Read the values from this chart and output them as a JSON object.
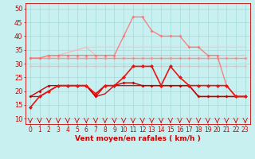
{
  "background_color": "#c8f0f0",
  "grid_color": "#aadddd",
  "xlabel": "Vent moyen/en rafales ( km/h )",
  "ylabel_ticks": [
    10,
    15,
    20,
    25,
    30,
    35,
    40,
    45,
    50
  ],
  "xlim": [
    -0.5,
    23.5
  ],
  "ylim": [
    8,
    52
  ],
  "x": [
    0,
    1,
    2,
    3,
    4,
    5,
    6,
    7,
    8,
    9,
    10,
    11,
    12,
    13,
    14,
    15,
    16,
    17,
    18,
    19,
    20,
    21,
    22,
    23
  ],
  "series": [
    {
      "label": "line_light_rising",
      "y": [
        32,
        32,
        33,
        33,
        34,
        35,
        36,
        33,
        33,
        33,
        33,
        33,
        33,
        33,
        33,
        33,
        33,
        33,
        33,
        33,
        33,
        33,
        33,
        33
      ],
      "color": "#ffaaaa",
      "marker": null,
      "markersize": 0,
      "linewidth": 0.9,
      "alpha": 0.75,
      "zorder": 2
    },
    {
      "label": "line_light_upper",
      "y": [
        32,
        32,
        32,
        33,
        34,
        35,
        36,
        36,
        36,
        36,
        36,
        36,
        36,
        36,
        36,
        36,
        36,
        36,
        36,
        36,
        36,
        36,
        36,
        36
      ],
      "color": "#ffb8b8",
      "marker": null,
      "markersize": 0,
      "linewidth": 0.9,
      "alpha": 0.6,
      "zorder": 2
    },
    {
      "label": "line_peak_rafales",
      "y": [
        32,
        32,
        33,
        33,
        33,
        33,
        33,
        33,
        33,
        33,
        40,
        47,
        47,
        42,
        40,
        40,
        40,
        36,
        36,
        33,
        33,
        22,
        18,
        18
      ],
      "color": "#ff7070",
      "marker": "D",
      "markersize": 2.0,
      "linewidth": 1.0,
      "alpha": 0.85,
      "zorder": 4
    },
    {
      "label": "line_flat_32",
      "y": [
        32,
        32,
        32,
        32,
        32,
        32,
        32,
        32,
        32,
        32,
        32,
        32,
        32,
        32,
        32,
        32,
        32,
        32,
        32,
        32,
        32,
        32,
        32,
        32
      ],
      "color": "#ff8888",
      "marker": "D",
      "markersize": 2.0,
      "linewidth": 1.0,
      "alpha": 0.9,
      "zorder": 3
    },
    {
      "label": "line_flat_29",
      "y": [
        29,
        29,
        29,
        29,
        29,
        29,
        29,
        29,
        29,
        29,
        29,
        29,
        29,
        29,
        29,
        29,
        29,
        29,
        29,
        29,
        29,
        29,
        29,
        29
      ],
      "color": "#ffb0b0",
      "marker": "D",
      "markersize": 1.8,
      "linewidth": 0.9,
      "alpha": 0.8,
      "zorder": 3
    },
    {
      "label": "line_dark_main",
      "y": [
        14,
        18,
        20,
        22,
        22,
        22,
        22,
        19,
        22,
        22,
        25,
        29,
        29,
        29,
        22,
        29,
        25,
        22,
        22,
        22,
        22,
        22,
        18,
        18
      ],
      "color": "#ee1111",
      "marker": "D",
      "markersize": 2.5,
      "linewidth": 1.2,
      "alpha": 1.0,
      "zorder": 6
    },
    {
      "label": "line_dark_lower1",
      "y": [
        18,
        20,
        22,
        22,
        22,
        22,
        22,
        18,
        22,
        22,
        23,
        23,
        22,
        22,
        22,
        22,
        22,
        22,
        18,
        18,
        18,
        18,
        18,
        18
      ],
      "color": "#cc0000",
      "marker": "D",
      "markersize": 2.0,
      "linewidth": 1.0,
      "alpha": 1.0,
      "zorder": 5
    },
    {
      "label": "line_dark_lower2",
      "y": [
        18,
        18,
        20,
        22,
        22,
        22,
        22,
        18,
        19,
        22,
        22,
        22,
        22,
        22,
        22,
        22,
        22,
        22,
        18,
        18,
        18,
        18,
        18,
        18
      ],
      "color": "#bb0000",
      "marker": null,
      "markersize": 0,
      "linewidth": 1.0,
      "alpha": 0.9,
      "zorder": 5
    }
  ],
  "arrow_angles": [
    180,
    170,
    160,
    160,
    160,
    160,
    160,
    160,
    160,
    160,
    180,
    180,
    180,
    180,
    195,
    210,
    210,
    210,
    180,
    180,
    180,
    180,
    180,
    180
  ],
  "arrow_color": "#cc0000",
  "xlabel_color": "#cc0000",
  "tick_color": "#cc0000",
  "xlabel_fontsize": 6.5,
  "ytick_fontsize": 6,
  "xtick_fontsize": 5.5
}
